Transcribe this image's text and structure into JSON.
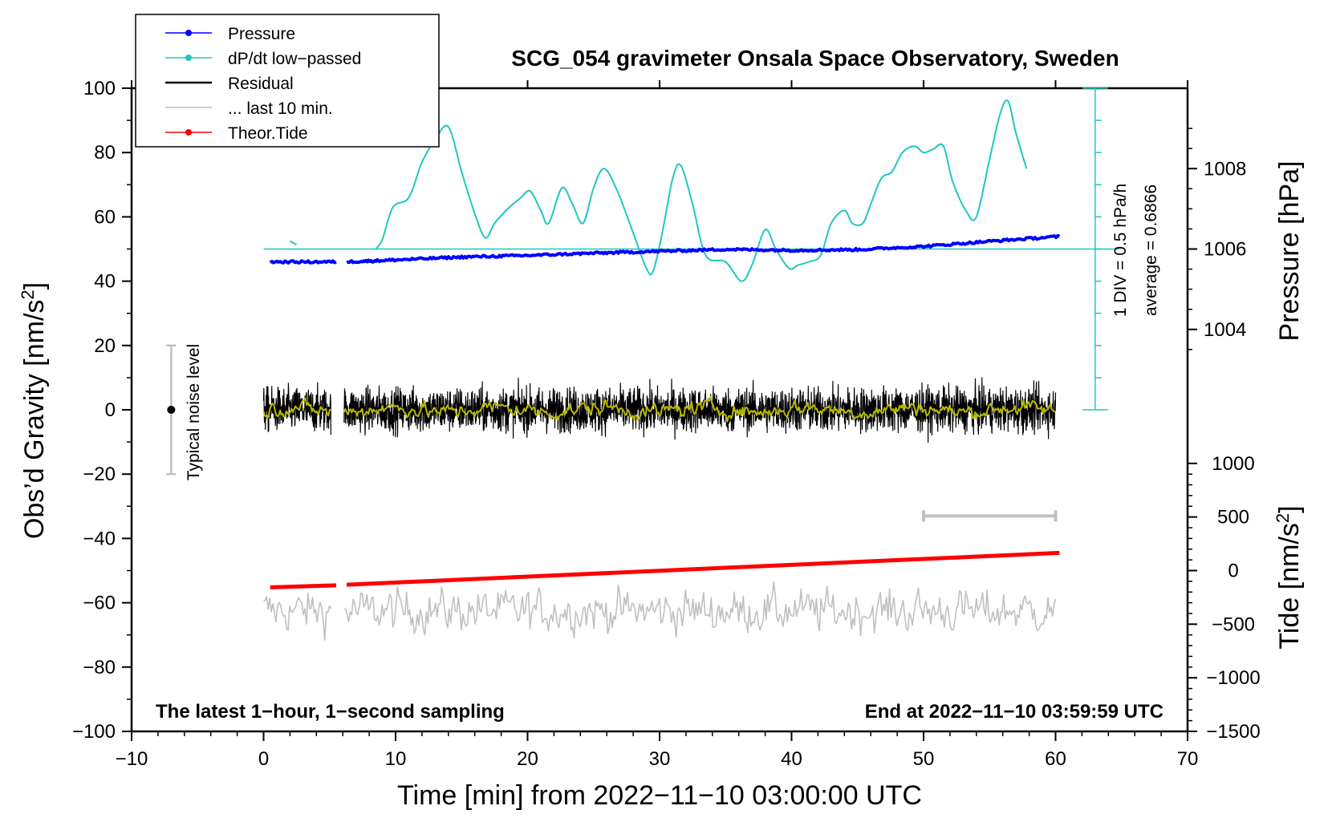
{
  "chart_data": {
    "type": "line",
    "title": "SCG_054 gravimeter Onsala Space Observatory, Sweden",
    "xlabel": "Time [min] from 2022−11−10 03:00:00 UTC",
    "ylabel_left": "Obs’d Gravity [nm/s²]",
    "ylabel_left_base": "Obs’d Gravity [nm/s",
    "ylabel_left_sup": "2",
    "ylabel_left_close": "]",
    "ylabel_pressure": "Pressure [hPa]",
    "ylabel_tide_base": "Tide [nm/s",
    "ylabel_tide_sup": "2",
    "ylabel_tide_close": "]",
    "xlim": [
      -10,
      70
    ],
    "ylim_left": [
      -100,
      100
    ],
    "x_ticks": [
      -10,
      0,
      10,
      20,
      30,
      40,
      50,
      60,
      70
    ],
    "x_tick_labels": [
      "−10",
      "0",
      "10",
      "20",
      "30",
      "40",
      "50",
      "60",
      "70"
    ],
    "y_ticks_left": [
      100,
      80,
      60,
      40,
      20,
      0,
      -20,
      -40,
      -60,
      -80,
      -100
    ],
    "y_tick_labels_left": [
      "100",
      "80",
      "60",
      "40",
      "20",
      "0",
      "−20",
      "−40",
      "−60",
      "−80",
      "−100"
    ],
    "pressure_axis": {
      "ticks": [
        1008,
        1006,
        1004
      ],
      "tick_labels": [
        "1008",
        "1006",
        "1004"
      ],
      "map": {
        "hpa_at_gravity_50": 1006,
        "gravity_units_per_hpa": 12.5
      }
    },
    "tide_axis": {
      "ticks": [
        1000,
        500,
        0,
        -500,
        -1000,
        -1500
      ],
      "tick_labels": [
        "1000",
        "500",
        "0",
        "−500",
        "−1000",
        "−1500"
      ],
      "range": [
        -1500,
        1500
      ],
      "gravity_range": [
        -100,
        0
      ]
    },
    "annotations": {
      "bottom_left": "The latest 1−hour, 1−second sampling",
      "bottom_right": "End at 2022−11−10 03:59:59 UTC",
      "noise_label": "Typical noise level",
      "scale_div": "1 DIV = 0.5 hPa/h",
      "scale_avg": "average = 0.6866"
    },
    "noise_bar": {
      "x": -7,
      "center": 0,
      "low": -20,
      "high": 20
    },
    "last10_bar": {
      "x_start": 50,
      "x_end": 60,
      "y": -33
    },
    "dpdt_panel": {
      "x": 63,
      "y_bottom": 0,
      "y_top": 100,
      "baseline": 50,
      "baseline_x_start": 0,
      "baseline_x_end": 63,
      "div_step": 10
    },
    "legend": [
      {
        "label": "Pressure",
        "color": "#0000ff",
        "marker": true
      },
      {
        "label": "dP/dt low−passed",
        "color": "#1ec8c0",
        "marker": true
      },
      {
        "label": "Residual",
        "color": "#000000",
        "marker": false
      },
      {
        "label": "... last 10 min.",
        "color": "#c0c0c0",
        "marker": false
      },
      {
        "label": "Theor.Tide",
        "color": "#ff0000",
        "marker": true
      }
    ],
    "series": [
      {
        "name": "dP/dt low−passed",
        "color": "#1ec8c0",
        "segments": [
          {
            "x": [
              2.0,
              2.5
            ],
            "y": [
              52.5,
              51.3
            ]
          },
          {
            "x": [
              8.5,
              9,
              9.8,
              11,
              12,
              13,
              14,
              15,
              16,
              16.8,
              17.5,
              18.5,
              19.5,
              20.2,
              21,
              21.6,
              22.6,
              23.4,
              24.2,
              25,
              25.8,
              26.8,
              28,
              29,
              29.5,
              30.2,
              31,
              31.6,
              32.5,
              33.5,
              35,
              36.2,
              37,
              38,
              38.8,
              39.8,
              40.5,
              41.3,
              42.2,
              43,
              44,
              44.6,
              45.4,
              46,
              46.8,
              47.6,
              48.4,
              49.3,
              50,
              50.7,
              51.5,
              52.2,
              53.2,
              54,
              55,
              55.8,
              56.4,
              57,
              57.8
            ],
            "y": [
              50,
              53,
              63,
              66,
              77,
              84,
              88,
              74,
              61,
              53.5,
              58,
              62.5,
              66,
              68,
              62,
              58,
              69,
              64,
              58,
              69,
              75,
              68,
              55,
              44,
              43,
              55,
              72,
              76,
              64,
              48,
              46,
              40,
              45,
              56,
              50,
              44,
              45,
              46,
              48,
              58,
              62,
              58,
              58,
              64,
              72,
              74,
              80,
              82,
              80,
              81,
              82,
              71,
              62,
              60,
              78,
              92,
              96,
              86,
              75
            ]
          }
        ]
      },
      {
        "name": "Pressure",
        "color": "#0000ff",
        "segments": [
          {
            "x": [
              0.5,
              5.5
            ],
            "y": [
              46,
              46
            ]
          },
          {
            "x": [
              6.3,
              10,
              15,
              20,
              25,
              30,
              35,
              40,
              45,
              50,
              55,
              60.3
            ],
            "y": [
              46,
              46.6,
              47.5,
              48,
              48.7,
              49.3,
              49.9,
              49.6,
              49.8,
              50.8,
              52.4,
              53.9
            ]
          }
        ]
      },
      {
        "name": "Theor.Tide",
        "color": "#ff0000",
        "segments": [
          {
            "x": [
              0.5,
              5.5
            ],
            "y": [
              -55.2,
              -54.6
            ]
          },
          {
            "x": [
              6.3,
              60.3
            ],
            "y": [
              -54.4,
              -44.5
            ]
          }
        ]
      },
      {
        "name": "Residual",
        "color": "#000000",
        "noise": {
          "amplitude": 5.5,
          "center": 0,
          "gap": [
            5.1,
            6.1
          ],
          "x_start": 0.0,
          "x_end": 60.0,
          "samples": 3100
        }
      },
      {
        "name": "Residual smoothed",
        "color": "#b8b800",
        "noise": {
          "amplitude": 2.2,
          "center": 0,
          "gap": [
            5.1,
            6.1
          ],
          "x_start": 0.0,
          "x_end": 60.0,
          "samples": 620
        }
      },
      {
        "name": "... last 10 min.",
        "color": "#c0c0c0",
        "noise": {
          "amplitude": 5.5,
          "center": -62.5,
          "gap": [
            5.1,
            6.1
          ],
          "x_start": 0.0,
          "x_end": 60.0,
          "samples": 520
        }
      }
    ]
  }
}
